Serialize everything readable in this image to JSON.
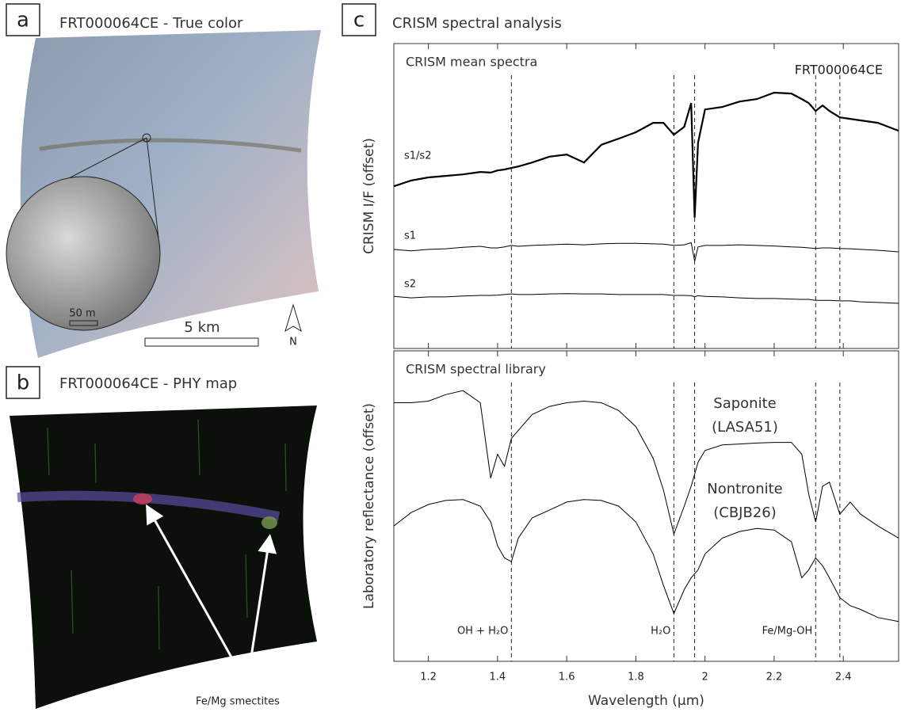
{
  "panels": {
    "a": {
      "label": "a",
      "title": "FRT000064CE - True color",
      "inset_scale": "50 m",
      "scale_bar": "5 km",
      "north": "N"
    },
    "b": {
      "label": "b",
      "title": "FRT000064CE - PHY map",
      "annotation": "Fe/Mg smectites"
    },
    "c": {
      "label": "c",
      "title": "CRISM spectral analysis"
    }
  },
  "chart_data": [
    {
      "type": "line",
      "title": "CRISM mean spectra",
      "annotation": "FRT000064CE",
      "ylabel": "CRISM I/F (offset)",
      "x": [
        1.1,
        1.15,
        1.2,
        1.25,
        1.3,
        1.35,
        1.38,
        1.4,
        1.42,
        1.44,
        1.46,
        1.5,
        1.55,
        1.6,
        1.65,
        1.7,
        1.75,
        1.8,
        1.85,
        1.88,
        1.91,
        1.94,
        1.96,
        1.97,
        1.98,
        2.0,
        2.05,
        2.1,
        2.15,
        2.2,
        2.25,
        2.28,
        2.3,
        2.32,
        2.34,
        2.36,
        2.39,
        2.42,
        2.45,
        2.5,
        2.56
      ],
      "xlim": [
        1.1,
        2.56
      ],
      "ylim": [
        0,
        10
      ],
      "vlines": [
        1.44,
        1.91,
        1.97,
        2.32,
        2.39
      ],
      "series": [
        {
          "name": "s1/s2",
          "color": "#000000",
          "width": 2.2,
          "values": [
            5.32,
            5.51,
            5.61,
            5.66,
            5.71,
            5.79,
            5.77,
            5.84,
            5.87,
            5.92,
            5.97,
            6.1,
            6.29,
            6.36,
            6.1,
            6.68,
            6.88,
            7.09,
            7.4,
            7.4,
            7.01,
            7.27,
            8.05,
            4.29,
            6.75,
            7.84,
            7.92,
            8.1,
            8.18,
            8.39,
            8.36,
            8.18,
            8.05,
            7.79,
            7.97,
            7.79,
            7.58,
            7.53,
            7.48,
            7.4,
            7.14
          ]
        },
        {
          "name": "s1",
          "color": "#000000",
          "width": 1,
          "values": [
            3.25,
            3.2,
            3.25,
            3.27,
            3.32,
            3.35,
            3.3,
            3.3,
            3.33,
            3.38,
            3.35,
            3.38,
            3.4,
            3.42,
            3.4,
            3.43,
            3.45,
            3.45,
            3.43,
            3.42,
            3.38,
            3.4,
            3.47,
            2.86,
            3.33,
            3.38,
            3.38,
            3.4,
            3.38,
            3.36,
            3.33,
            3.32,
            3.3,
            3.28,
            3.3,
            3.3,
            3.28,
            3.27,
            3.25,
            3.22,
            3.17
          ]
        },
        {
          "name": "s2",
          "color": "#000000",
          "width": 1,
          "values": [
            1.71,
            1.66,
            1.69,
            1.69,
            1.72,
            1.74,
            1.74,
            1.75,
            1.77,
            1.79,
            1.77,
            1.77,
            1.79,
            1.8,
            1.79,
            1.79,
            1.77,
            1.77,
            1.77,
            1.77,
            1.74,
            1.74,
            1.73,
            1.7,
            1.73,
            1.71,
            1.69,
            1.66,
            1.64,
            1.64,
            1.62,
            1.61,
            1.61,
            1.58,
            1.58,
            1.58,
            1.56,
            1.56,
            1.53,
            1.51,
            1.48
          ]
        }
      ]
    },
    {
      "type": "line",
      "title": "CRISM spectral library",
      "ylabel": "Laboratory reflectance (offset)",
      "xlabel": "Wavelength (µm)",
      "x": [
        1.1,
        1.15,
        1.2,
        1.25,
        1.3,
        1.35,
        1.38,
        1.4,
        1.42,
        1.44,
        1.46,
        1.5,
        1.55,
        1.6,
        1.65,
        1.7,
        1.75,
        1.8,
        1.85,
        1.88,
        1.91,
        1.94,
        1.96,
        1.97,
        1.98,
        2.0,
        2.05,
        2.1,
        2.15,
        2.2,
        2.25,
        2.28,
        2.3,
        2.32,
        2.34,
        2.36,
        2.39,
        2.42,
        2.45,
        2.5,
        2.56
      ],
      "xlim": [
        1.1,
        2.56
      ],
      "ylim": [
        0,
        10
      ],
      "xticks": [
        1.2,
        1.4,
        1.6,
        1.8,
        2.0,
        2.2,
        2.4
      ],
      "vlines": [
        1.44,
        1.91,
        1.97,
        2.32,
        2.39
      ],
      "annotations": [
        {
          "text": "OH + H₂O",
          "x": 1.44
        },
        {
          "text": "H₂O",
          "x": 1.91
        },
        {
          "text": "Fe/Mg-OH",
          "x": 2.32
        }
      ],
      "series": [
        {
          "name": "Saponite",
          "sample": "(LASA51)",
          "color": "#000000",
          "width": 1,
          "values": [
            8.33,
            8.33,
            8.38,
            8.59,
            8.72,
            8.33,
            5.9,
            6.67,
            6.28,
            7.18,
            7.44,
            7.95,
            8.21,
            8.33,
            8.38,
            8.33,
            8.08,
            7.56,
            6.54,
            5.51,
            4.1,
            5.0,
            5.64,
            6.03,
            6.41,
            6.79,
            6.97,
            7.0,
            7.03,
            7.05,
            7.05,
            6.67,
            5.38,
            4.49,
            5.64,
            5.77,
            4.74,
            5.13,
            4.74,
            4.36,
            3.97
          ]
        },
        {
          "name": "Nontronite",
          "sample": "(CBJB26)",
          "color": "#000000",
          "width": 1,
          "values": [
            4.36,
            4.79,
            5.05,
            5.18,
            5.21,
            5.0,
            4.49,
            3.72,
            3.33,
            3.21,
            3.97,
            4.62,
            4.87,
            5.13,
            5.21,
            5.18,
            5.0,
            4.49,
            3.46,
            2.44,
            1.54,
            2.31,
            2.69,
            2.82,
            2.95,
            3.46,
            3.97,
            4.18,
            4.28,
            4.23,
            3.85,
            2.69,
            2.95,
            3.33,
            3.08,
            2.69,
            2.05,
            1.79,
            1.67,
            1.41,
            1.28
          ]
        }
      ]
    }
  ]
}
